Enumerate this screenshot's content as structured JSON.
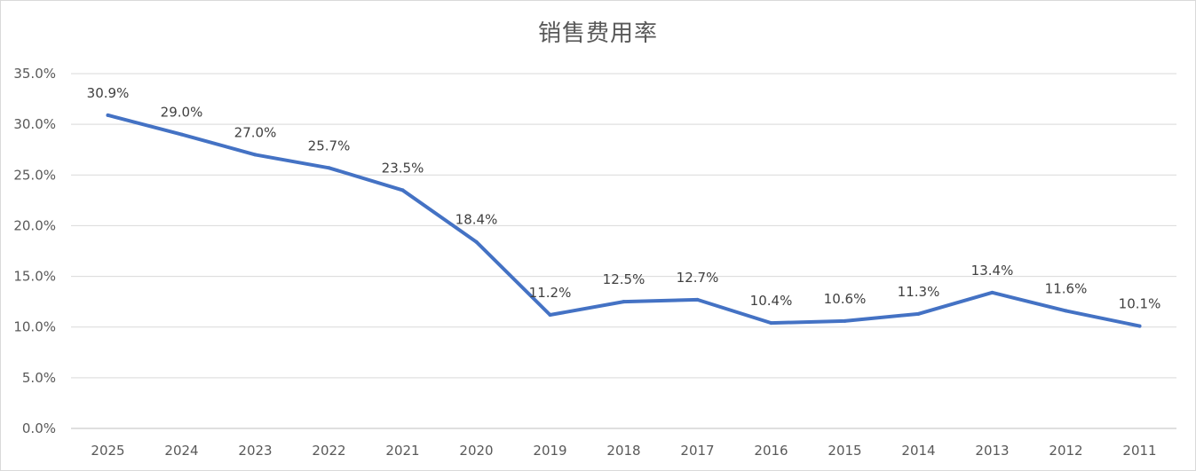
{
  "chart_data": {
    "type": "line",
    "title": "销售费用率",
    "xlabel": "",
    "ylabel": "",
    "ylim": [
      0,
      35
    ],
    "y_tick_step": 5,
    "y_tick_labels": [
      "0.0%",
      "5.0%",
      "10.0%",
      "15.0%",
      "20.0%",
      "25.0%",
      "30.0%",
      "35.0%"
    ],
    "grid": true,
    "legend": "none",
    "categories": [
      "2025",
      "2024",
      "2023",
      "2022",
      "2021",
      "2020",
      "2019",
      "2018",
      "2017",
      "2016",
      "2015",
      "2014",
      "2013",
      "2012",
      "2011"
    ],
    "series": [
      {
        "values": [
          30.9,
          29.0,
          27.0,
          25.7,
          23.5,
          18.4,
          11.2,
          12.5,
          12.7,
          10.4,
          10.6,
          11.3,
          13.4,
          11.6,
          10.1
        ],
        "data_labels": [
          "30.9%",
          "29.0%",
          "27.0%",
          "25.7%",
          "23.5%",
          "18.4%",
          "11.2%",
          "12.5%",
          "12.7%",
          "10.4%",
          "10.6%",
          "11.3%",
          "13.4%",
          "11.6%",
          "10.1%"
        ],
        "color": "#4472c4"
      }
    ],
    "colors": {
      "line": "#4472c4",
      "grid": "#d9d9d9",
      "text": "#595959"
    }
  }
}
